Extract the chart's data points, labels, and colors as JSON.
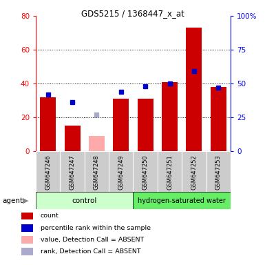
{
  "title": "GDS5215 / 1368447_x_at",
  "samples": [
    "GSM647246",
    "GSM647247",
    "GSM647248",
    "GSM647249",
    "GSM647250",
    "GSM647251",
    "GSM647252",
    "GSM647253"
  ],
  "counts": [
    32,
    15,
    null,
    31,
    31,
    41,
    73,
    38
  ],
  "counts_absent": [
    null,
    null,
    9,
    null,
    null,
    null,
    null,
    null
  ],
  "percentile_ranks": [
    42,
    36,
    null,
    44,
    48,
    50,
    59,
    47
  ],
  "ranks_absent": [
    null,
    null,
    27,
    null,
    null,
    null,
    null,
    null
  ],
  "control_group": [
    0,
    1,
    2,
    3
  ],
  "treatment_group": [
    4,
    5,
    6,
    7
  ],
  "control_label": "control",
  "treatment_label": "hydrogen-saturated water",
  "bar_color": "#cc0000",
  "bar_absent_color": "#ffaaaa",
  "dot_color": "#0000cc",
  "dot_absent_color": "#aaaacc",
  "control_bg": "#ccffcc",
  "treatment_bg": "#66ee66",
  "sample_bg": "#cccccc",
  "ylim_left": [
    0,
    80
  ],
  "ylim_right": [
    0,
    100
  ],
  "yticks_left": [
    0,
    20,
    40,
    60,
    80
  ],
  "yticks_right": [
    0,
    25,
    50,
    75,
    100
  ],
  "ytick_labels_right": [
    "0",
    "25",
    "50",
    "75",
    "100%"
  ],
  "gridlines": [
    20,
    40,
    60
  ]
}
